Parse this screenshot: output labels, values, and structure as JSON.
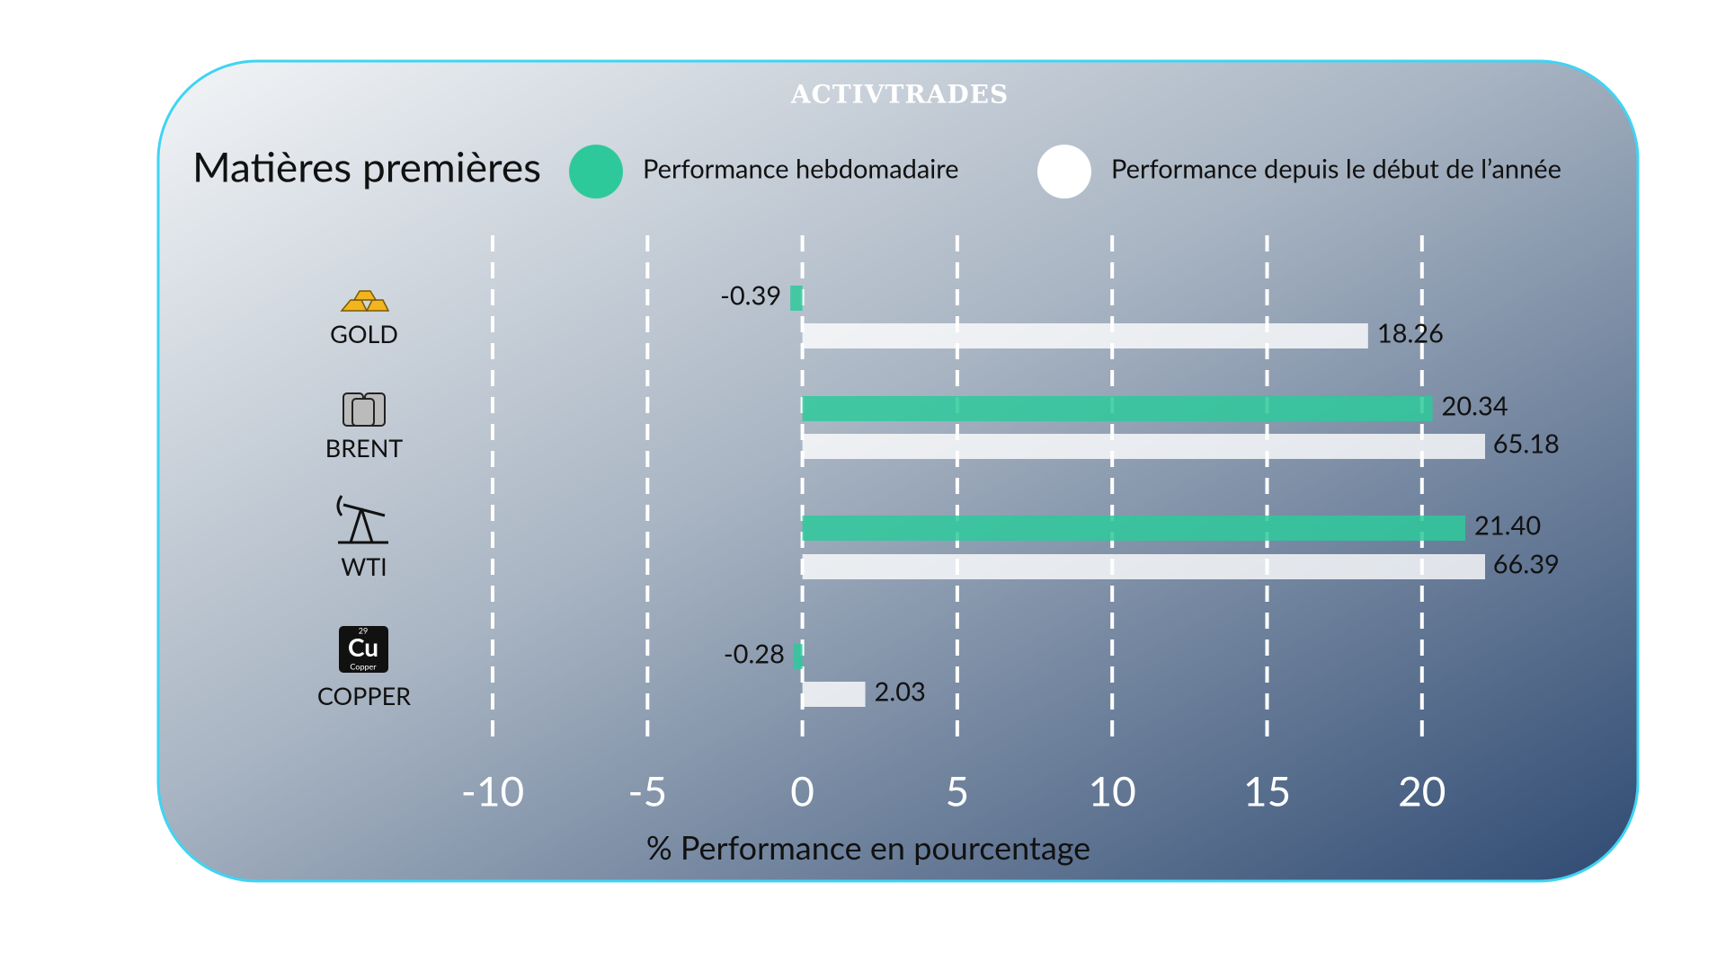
{
  "logo": "ACTIVTRADES",
  "chart_data": {
    "type": "bar",
    "orientation": "horizontal",
    "title": "Matières premières",
    "x_label": "% Performance en pourcentage",
    "categories": [
      "GOLD",
      "BRENT",
      "WTI",
      "COPPER"
    ],
    "copper_icon": {
      "number": 29,
      "symbol": "Cu",
      "name": "Copper"
    },
    "series": [
      {
        "name": "Performance hebdomadaire",
        "color": "#2ec99b",
        "values": [
          -0.39,
          20.34,
          21.4,
          -0.28
        ],
        "value_labels": [
          "-0.39",
          "20.34",
          "21.40",
          "-0.28"
        ]
      },
      {
        "name": "Performance depuis le début de l’année",
        "color": "#ffffff",
        "values": [
          18.26,
          65.18,
          66.39,
          2.03
        ],
        "value_labels": [
          "18.26",
          "65.18",
          "66.39",
          "2.03"
        ]
      }
    ],
    "xlim": [
      -10,
      22
    ],
    "xticks": [
      -10,
      -5,
      0,
      5,
      10,
      15,
      20
    ],
    "grid": true,
    "legend": "top"
  }
}
